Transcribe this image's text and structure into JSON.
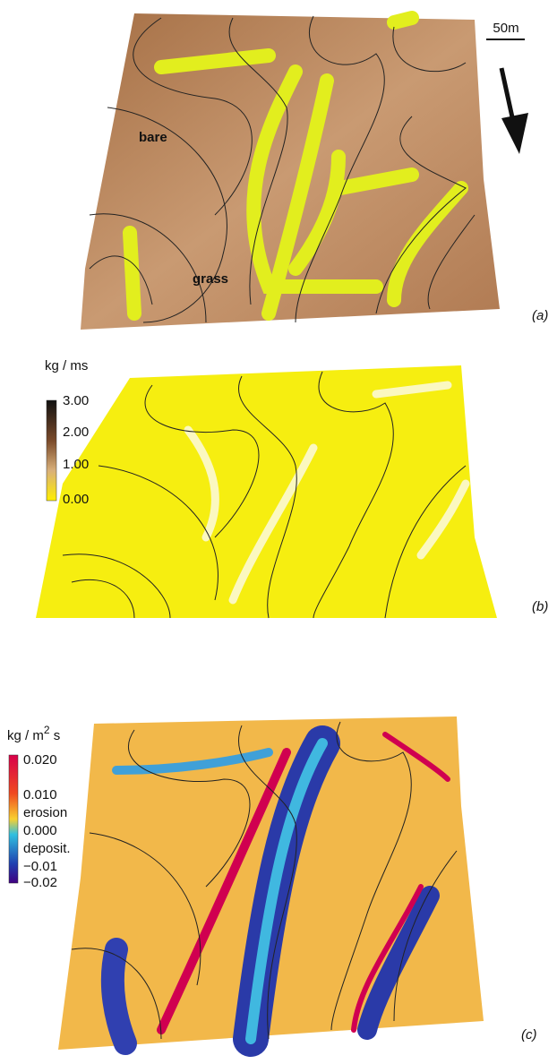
{
  "panel_a": {
    "scale_label": "50m",
    "labels": [
      "bare",
      "grass"
    ],
    "caption": "(a)"
  },
  "panel_b": {
    "unit": "kg / ms",
    "colorbar_ticks": [
      "3.00",
      "2.00",
      "1.00",
      "0.00"
    ],
    "caption": "(b)"
  },
  "panel_c": {
    "unit_start": "kg / m",
    "unit_exp": "2",
    "unit_end": " s",
    "colorbar_labels": [
      "0.020",
      "0.010",
      "erosion",
      "0.000",
      "deposit.",
      "−0.01",
      "−0.02"
    ],
    "caption": "(c)"
  }
}
